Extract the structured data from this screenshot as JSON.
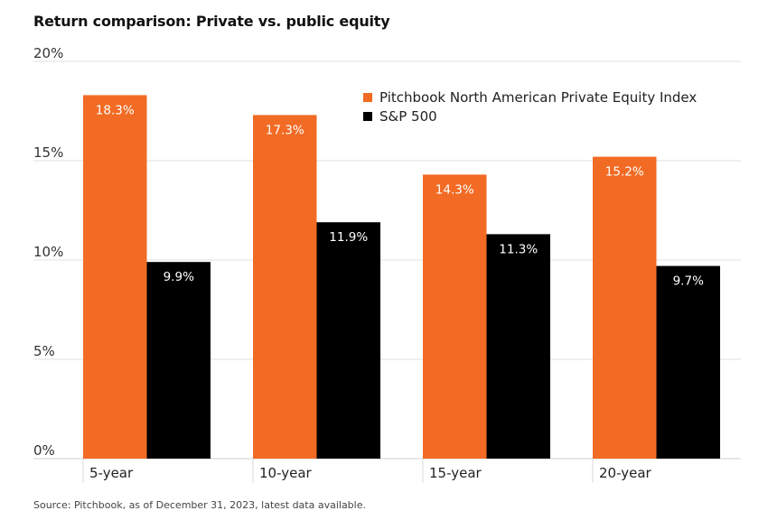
{
  "chart_data": {
    "type": "bar",
    "title": "Return comparison: Private vs. public equity",
    "xlabel": "",
    "ylabel": "",
    "categories": [
      "5-year",
      "10-year",
      "15-year",
      "20-year"
    ],
    "series": [
      {
        "name": "Pitchbook North American Private Equity Index",
        "values": [
          18.3,
          17.3,
          14.3,
          15.2
        ],
        "labels": [
          "18.3%",
          "17.3%",
          "14.3%",
          "15.2%"
        ],
        "color": "#F26B24"
      },
      {
        "name": "S&P 500",
        "values": [
          9.9,
          11.9,
          11.3,
          9.7
        ],
        "labels": [
          "9.9%",
          "11.9%",
          "11.3%",
          "9.7%"
        ],
        "color": "#000000"
      }
    ],
    "ylim": [
      0,
      20
    ],
    "yticks": [
      0,
      5,
      10,
      15,
      20
    ],
    "ytick_labels": [
      "0%",
      "5%",
      "10%",
      "15%",
      "20%"
    ],
    "grid": true,
    "legend_position": "top-right",
    "source": "Source: Pitchbook, as of December 31, 2023, latest data available."
  }
}
